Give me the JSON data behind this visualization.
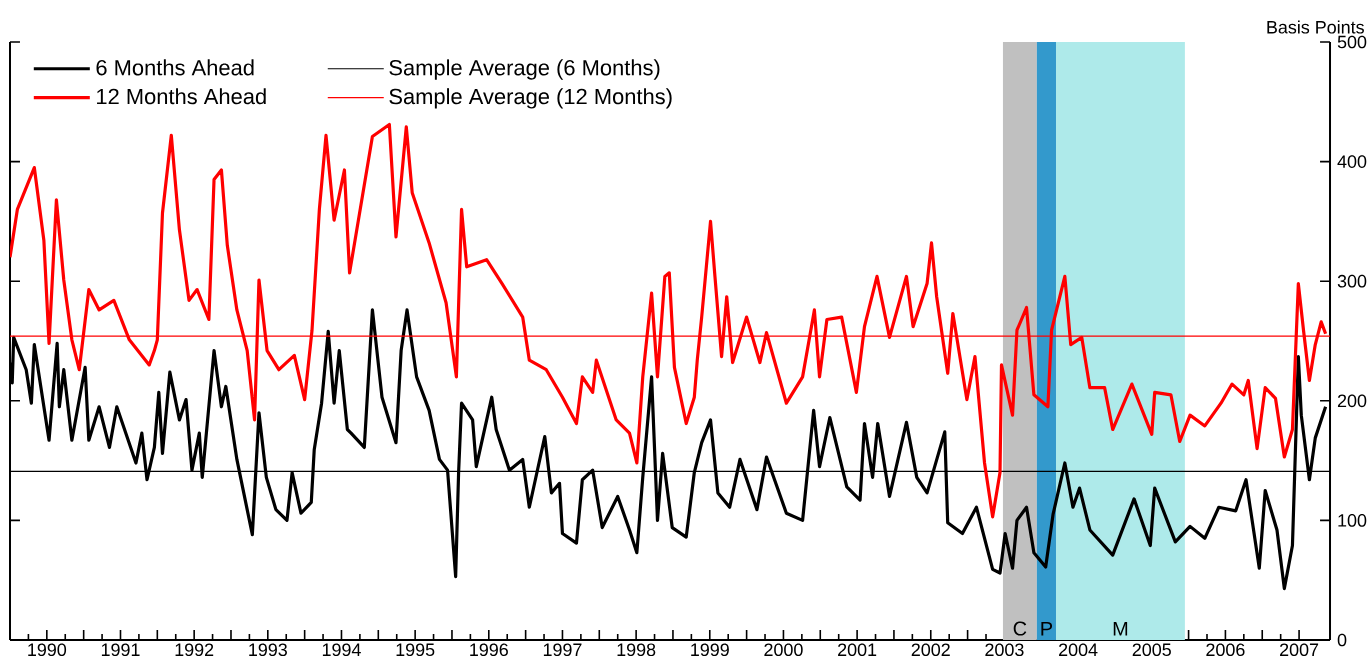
{
  "chart_data": {
    "type": "line",
    "ylabel": "Basis Points",
    "xlim": [
      1990,
      2007.92
    ],
    "ylim": [
      0,
      500
    ],
    "xticks": [
      {
        "value": 1990,
        "label": null
      },
      {
        "value": 1990.5,
        "label": "1990"
      },
      {
        "value": 1991,
        "label": null
      },
      {
        "value": 1991.5,
        "label": "1991"
      },
      {
        "value": 1992,
        "label": null
      },
      {
        "value": 1992.5,
        "label": "1992"
      },
      {
        "value": 1993,
        "label": null
      },
      {
        "value": 1993.5,
        "label": "1993"
      },
      {
        "value": 1994,
        "label": null
      },
      {
        "value": 1994.5,
        "label": "1994"
      },
      {
        "value": 1995,
        "label": null
      },
      {
        "value": 1995.5,
        "label": "1995"
      },
      {
        "value": 1996,
        "label": null
      },
      {
        "value": 1996.5,
        "label": "1996"
      },
      {
        "value": 1997,
        "label": null
      },
      {
        "value": 1997.5,
        "label": "1997"
      },
      {
        "value": 1998,
        "label": null
      },
      {
        "value": 1998.5,
        "label": "1998"
      },
      {
        "value": 1999,
        "label": null
      },
      {
        "value": 1999.5,
        "label": "1999"
      },
      {
        "value": 2000,
        "label": null
      },
      {
        "value": 2000.5,
        "label": "2000"
      },
      {
        "value": 2001,
        "label": null
      },
      {
        "value": 2001.5,
        "label": "2001"
      },
      {
        "value": 2002,
        "label": null
      },
      {
        "value": 2002.5,
        "label": "2002"
      },
      {
        "value": 2003,
        "label": null
      },
      {
        "value": 2003.5,
        "label": "2003"
      },
      {
        "value": 2004,
        "label": null
      },
      {
        "value": 2004.5,
        "label": "2004"
      },
      {
        "value": 2005,
        "label": null
      },
      {
        "value": 2005.5,
        "label": "2005"
      },
      {
        "value": 2006,
        "label": null
      },
      {
        "value": 2006.5,
        "label": "2006"
      },
      {
        "value": 2007,
        "label": null
      },
      {
        "value": 2007.5,
        "label": "2007"
      }
    ],
    "yticks": [
      0,
      100,
      200,
      300,
      400,
      500
    ],
    "legend": "top left",
    "bands": [
      {
        "axis": "x",
        "from": 2003.48,
        "to": 2003.94,
        "label": "C",
        "color": "#c0c0c0"
      },
      {
        "axis": "x",
        "from": 2003.94,
        "to": 2004.2,
        "label": "P",
        "color": "#3399cc"
      },
      {
        "axis": "x",
        "from": 2004.2,
        "to": 2005.95,
        "label": "M",
        "color": "#aeeaea"
      }
    ],
    "series": [
      {
        "name": "6 Months Ahead",
        "color": "#000000",
        "x": [
          1990.0,
          1990.03,
          1990.05,
          1990.22,
          1990.29,
          1990.33,
          1990.53,
          1990.64,
          1990.67,
          1990.73,
          1990.84,
          1991.02,
          1991.07,
          1991.21,
          1991.35,
          1991.45,
          1991.71,
          1991.79,
          1991.86,
          1991.96,
          1992.02,
          1992.07,
          1992.17,
          1992.3,
          1992.39,
          1992.47,
          1992.57,
          1992.61,
          1992.77,
          1992.87,
          1992.93,
          1993.08,
          1993.22,
          1993.29,
          1993.38,
          1993.48,
          1993.61,
          1993.76,
          1993.83,
          1993.95,
          1994.09,
          1994.13,
          1994.23,
          1994.32,
          1994.4,
          1994.47,
          1994.58,
          1994.63,
          1994.81,
          1994.92,
          1995.05,
          1995.24,
          1995.31,
          1995.39,
          1995.52,
          1995.69,
          1995.83,
          1995.94,
          1996.05,
          1996.09,
          1996.13,
          1996.28,
          1996.33,
          1996.54,
          1996.6,
          1996.78,
          1996.96,
          1997.05,
          1997.26,
          1997.35,
          1997.46,
          1997.5,
          1997.69,
          1997.77,
          1997.91,
          1998.04,
          1998.25,
          1998.41,
          1998.51,
          1998.59,
          1998.71,
          1998.79,
          1998.86,
          1998.99,
          1999.18,
          1999.29,
          1999.39,
          1999.51,
          1999.61,
          1999.77,
          1999.91,
          2000.14,
          2000.27,
          2000.54,
          2000.76,
          2000.91,
          2000.99,
          2001.13,
          2001.36,
          2001.54,
          2001.6,
          2001.71,
          2001.78,
          2001.94,
          2002.17,
          2002.31,
          2002.45,
          2002.69,
          2002.73,
          2002.93,
          2003.12,
          2003.34,
          2003.44,
          2003.51,
          2003.61,
          2003.67,
          2003.8,
          2003.9,
          2004.06,
          2004.16,
          2004.32,
          2004.43,
          2004.52,
          2004.66,
          2004.97,
          2005.26,
          2005.48,
          2005.54,
          2005.82,
          2006.02,
          2006.22,
          2006.41,
          2006.64,
          2006.78,
          2006.96,
          2007.04,
          2007.2,
          2007.3,
          2007.41,
          2007.49,
          2007.53,
          2007.64,
          2007.72,
          2007.86
        ],
        "values": [
          232,
          215,
          253,
          226,
          198,
          247,
          167,
          248,
          195,
          226,
          167,
          228,
          167,
          195,
          161,
          195,
          148,
          173,
          134,
          161,
          207,
          156,
          224,
          184,
          201,
          142,
          173,
          136,
          242,
          195,
          212,
          151,
          109,
          88,
          190,
          136,
          109,
          100,
          140,
          106,
          115,
          159,
          198,
          258,
          198,
          242,
          176,
          173,
          161,
          276,
          203,
          165,
          242,
          276,
          220,
          192,
          151,
          142,
          53,
          140,
          198,
          184,
          145,
          203,
          176,
          142,
          151,
          111,
          170,
          123,
          131,
          89,
          81,
          134,
          142,
          94,
          120,
          92,
          73,
          136,
          220,
          100,
          156,
          94,
          86,
          140,
          165,
          184,
          123,
          111,
          151,
          109,
          153,
          106,
          100,
          192,
          145,
          186,
          128,
          117,
          181,
          136,
          181,
          120,
          182,
          136,
          123,
          174,
          98,
          89,
          111,
          59,
          56,
          89,
          60,
          100,
          111,
          73,
          61,
          105,
          148,
          111,
          127,
          92,
          71,
          118,
          79,
          127,
          82,
          95,
          85,
          111,
          108,
          134,
          60,
          125,
          92,
          43,
          79,
          237,
          188,
          134,
          169,
          195
        ]
      },
      {
        "name": "Sample Average (6 Months)",
        "color": "#000000",
        "x": [
          1990,
          2007.92
        ],
        "values": [
          141,
          141
        ]
      },
      {
        "name": "12 Months Ahead",
        "color": "#ff0000",
        "x": [
          1990.0,
          1990.1,
          1990.33,
          1990.46,
          1990.53,
          1990.63,
          1990.73,
          1990.84,
          1990.94,
          1991.07,
          1991.21,
          1991.41,
          1991.62,
          1991.89,
          1991.96,
          1992.0,
          1992.07,
          1992.19,
          1992.3,
          1992.43,
          1992.54,
          1992.7,
          1992.77,
          1992.87,
          1992.95,
          1993.08,
          1993.22,
          1993.32,
          1993.38,
          1993.49,
          1993.65,
          1993.86,
          1994.0,
          1994.1,
          1994.2,
          1994.29,
          1994.4,
          1994.54,
          1994.61,
          1994.92,
          1995.15,
          1995.24,
          1995.38,
          1995.46,
          1995.69,
          1995.92,
          1996.06,
          1996.13,
          1996.2,
          1996.47,
          1996.68,
          1996.96,
          1997.05,
          1997.28,
          1997.5,
          1997.69,
          1997.77,
          1997.91,
          1997.96,
          1998.23,
          1998.41,
          1998.51,
          1998.59,
          1998.71,
          1998.79,
          1998.89,
          1998.95,
          1999.02,
          1999.18,
          1999.29,
          1999.33,
          1999.39,
          1999.51,
          1999.57,
          1999.66,
          1999.73,
          1999.81,
          2000.0,
          2000.18,
          2000.27,
          2000.54,
          2000.76,
          2000.92,
          2000.99,
          2001.09,
          2001.29,
          2001.49,
          2001.6,
          2001.77,
          2001.94,
          2002.17,
          2002.26,
          2002.45,
          2002.51,
          2002.58,
          2002.73,
          2002.8,
          2002.99,
          2003.1,
          2003.23,
          2003.34,
          2003.44,
          2003.46,
          2003.61,
          2003.67,
          2003.8,
          2003.9,
          2004.09,
          2004.14,
          2004.32,
          2004.4,
          2004.55,
          2004.66,
          2004.86,
          2004.97,
          2005.23,
          2005.5,
          2005.54,
          2005.76,
          2005.88,
          2006.02,
          2006.22,
          2006.44,
          2006.59,
          2006.75,
          2006.81,
          2006.93,
          2007.04,
          2007.18,
          2007.3,
          2007.41,
          2007.49,
          2007.56,
          2007.64,
          2007.72,
          2007.8,
          2007.86
        ],
        "values": [
          320,
          360,
          395,
          334,
          248,
          368,
          301,
          251,
          226,
          293,
          276,
          284,
          251,
          230,
          242,
          251,
          357,
          422,
          343,
          284,
          293,
          268,
          385,
          393,
          330,
          276,
          242,
          184,
          301,
          242,
          226,
          238,
          201,
          259,
          360,
          422,
          351,
          393,
          307,
          421,
          431,
          337,
          429,
          374,
          332,
          282,
          220,
          360,
          312,
          318,
          298,
          270,
          234,
          226,
          203,
          181,
          220,
          207,
          234,
          184,
          173,
          148,
          220,
          290,
          220,
          304,
          307,
          228,
          181,
          203,
          234,
          270,
          350,
          304,
          237,
          287,
          232,
          270,
          232,
          257,
          198,
          220,
          276,
          220,
          268,
          270,
          207,
          262,
          304,
          253,
          304,
          262,
          298,
          332,
          287,
          223,
          273,
          201,
          237,
          148,
          103,
          140,
          230,
          188,
          259,
          278,
          205,
          195,
          259,
          304,
          247,
          253,
          211,
          211,
          176,
          214,
          172,
          207,
          205,
          166,
          188,
          179,
          198,
          214,
          205,
          217,
          160,
          211,
          202,
          153,
          176,
          298,
          259,
          217,
          247,
          266,
          256
        ]
      },
      {
        "name": "Sample Average (12 Months)",
        "color": "#ff0000",
        "x": [
          1990,
          2007.92
        ],
        "values": [
          254,
          254
        ]
      }
    ]
  }
}
